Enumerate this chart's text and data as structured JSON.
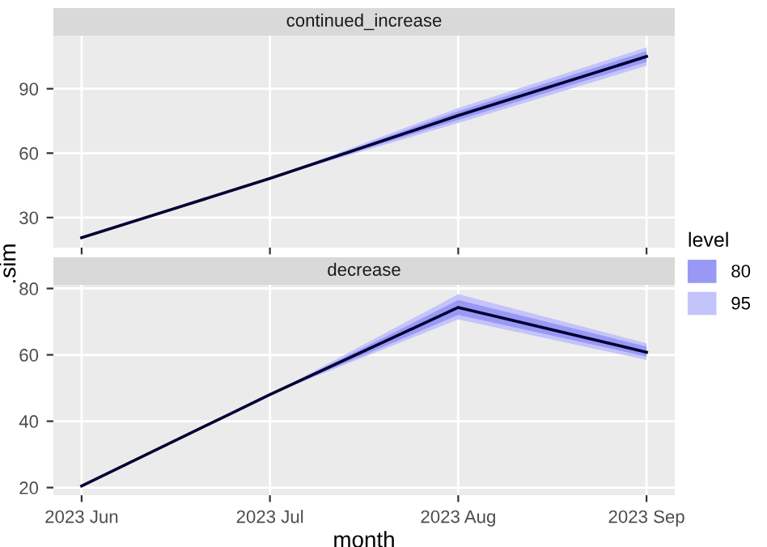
{
  "chart_data": [
    {
      "type": "line",
      "title": "continued_increase",
      "ylim": [
        16,
        114.75
      ],
      "yticks": [
        30,
        60,
        90
      ],
      "grid": true,
      "tick_labels": "y",
      "series": [
        {
          "type": "area",
          "color": "#c4c4fb",
          "values": [
            null,
            null,
            null,
            null
          ],
          "lower": [
            null,
            48.2,
            74,
            100.7
          ],
          "upper": [
            null,
            48.2,
            81,
            109.3
          ]
        },
        {
          "type": "area",
          "color": "#9999f5",
          "values": [
            null,
            null,
            null,
            null
          ],
          "lower": [
            null,
            48.2,
            75.5,
            102.5
          ],
          "upper": [
            null,
            48.2,
            79.5,
            107.5
          ]
        },
        {
          "color": "#000033",
          "values": [
            20.6,
            48.2,
            77.5,
            105
          ]
        }
      ]
    },
    {
      "type": "line",
      "title": "decrease",
      "xlabel": "month",
      "ylabel": ".sim",
      "legend_title": "level",
      "legend": "right",
      "categories": [
        "2023 Jun",
        "2023 Jul",
        "2023 Aug",
        "2023 Sep"
      ],
      "ylim": [
        17.7,
        81.1
      ],
      "yticks": [
        20,
        40,
        60,
        80
      ],
      "grid": true,
      "series": [
        {
          "type": "area",
          "name": "95",
          "color": "#c4c4fb",
          "values": [
            null,
            null,
            null,
            null
          ],
          "lower": [
            null,
            48,
            70.7,
            58.5
          ],
          "upper": [
            null,
            48,
            78.3,
            63.5
          ]
        },
        {
          "type": "area",
          "name": "80",
          "color": "#9999f5",
          "values": [
            null,
            null,
            null,
            null
          ],
          "lower": [
            null,
            48,
            72,
            59.5
          ],
          "upper": [
            null,
            48,
            76.5,
            62.5
          ]
        },
        {
          "color": "#000033",
          "values": [
            20.5,
            48,
            74.3,
            60.8
          ]
        }
      ]
    }
  ]
}
